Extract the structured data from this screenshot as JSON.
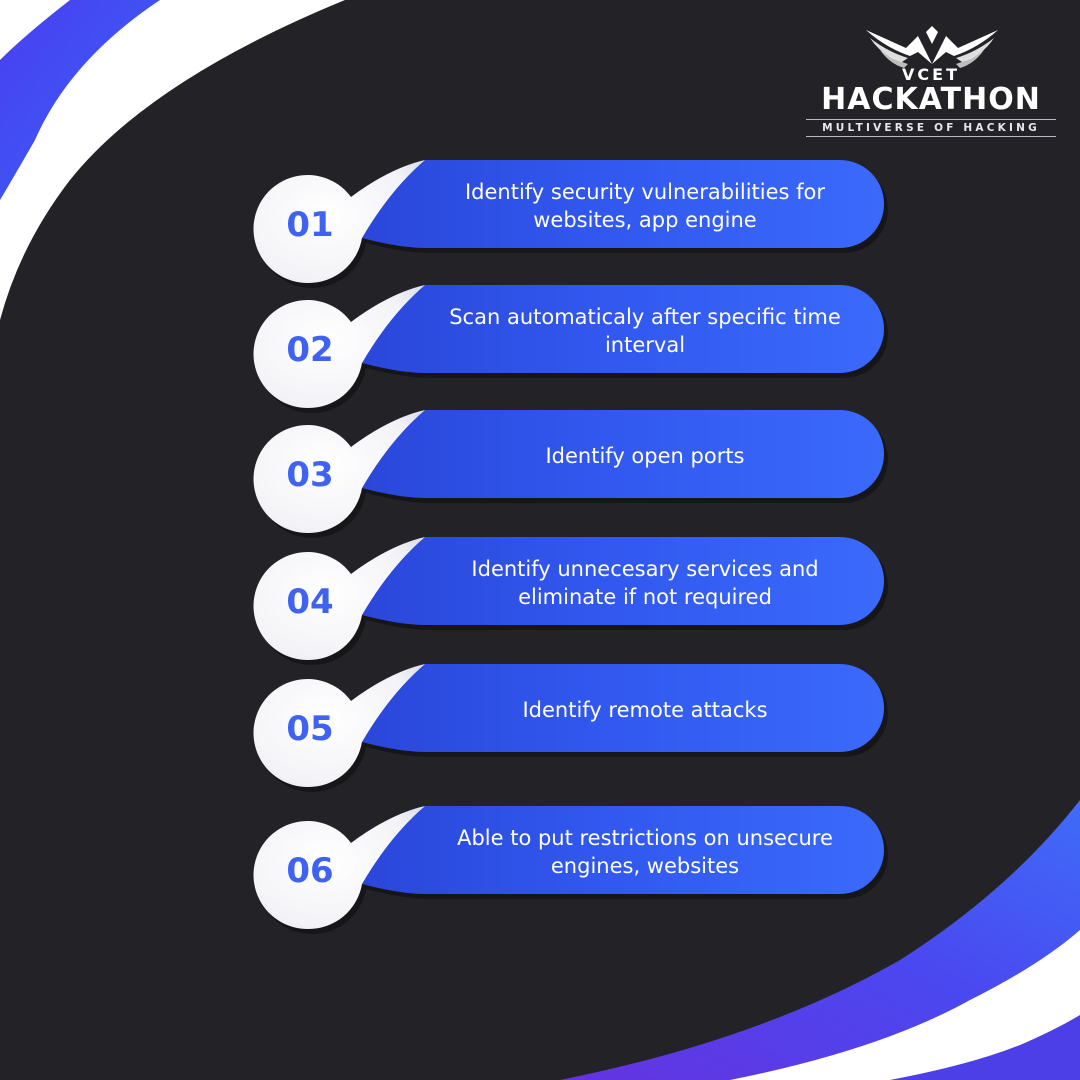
{
  "brand": {
    "top_label": "VCET",
    "name": "HACKATHON",
    "tagline": "MULTIVERSE OF HACKING"
  },
  "colors": {
    "background": "#232227",
    "accent_blue": "#3461f5",
    "accent_purple": "#5b3ae6",
    "number_blue": "#3f63f0",
    "white": "#ffffff"
  },
  "steps": [
    {
      "number": "01",
      "text": "Identify security vulnerabilities for websites, app engine"
    },
    {
      "number": "02",
      "text": "Scan automaticaly after specific time interval"
    },
    {
      "number": "03",
      "text": "Identify open ports"
    },
    {
      "number": "04",
      "text": "Identify unnecesary services and eliminate if not required"
    },
    {
      "number": "05",
      "text": "Identify remote attacks"
    },
    {
      "number": "06",
      "text": "Able to put restrictions on unsecure engines, websites"
    }
  ]
}
